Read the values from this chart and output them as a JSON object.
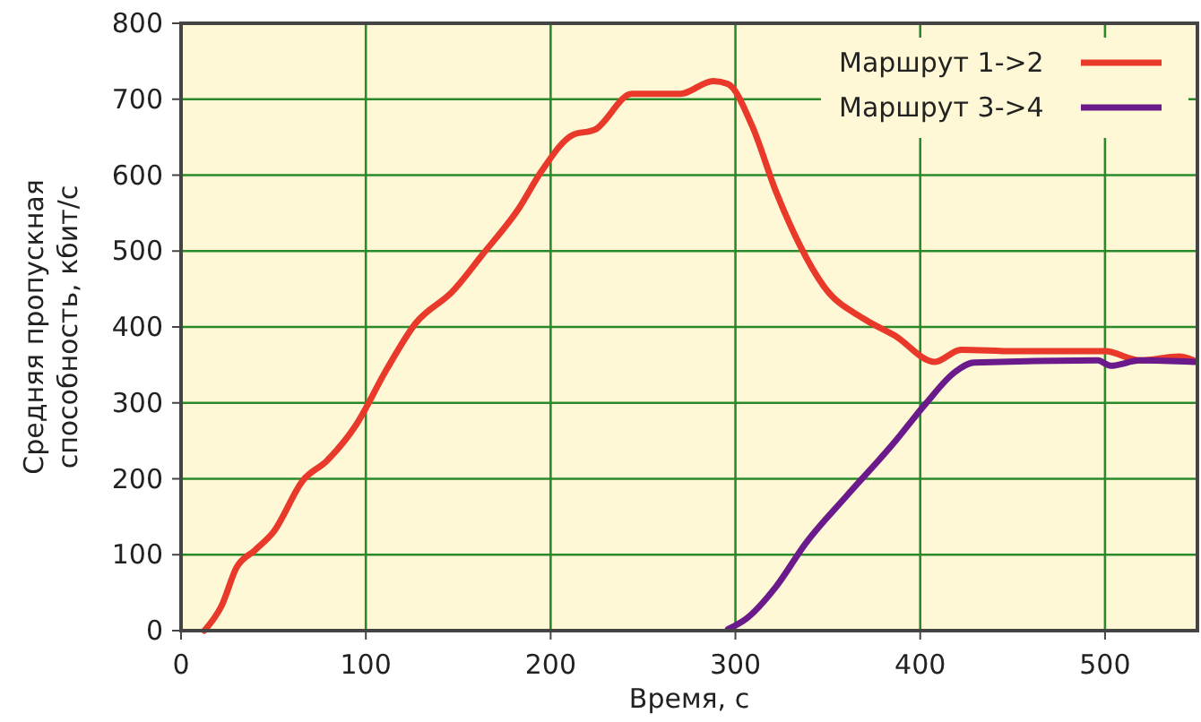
{
  "chart_data": {
    "type": "line",
    "xlabel": "Время, с",
    "ylabel": "Средняя пропускная способность, кбит/с",
    "xlim": [
      0,
      550
    ],
    "xticks": [
      0,
      100,
      200,
      300,
      400,
      500
    ],
    "ylim": [
      0,
      800
    ],
    "yticks": [
      0,
      100,
      200,
      300,
      400,
      500,
      600,
      700,
      800
    ],
    "grid": true,
    "legend": "top right",
    "marker": "none",
    "line_style": "solid",
    "series": [
      {
        "name": "Маршрут 1->2",
        "color": "#e8392a",
        "x": [
          12.6,
          22,
          30,
          40,
          50,
          66,
          79,
          95,
          111,
          127,
          147,
          163,
          183,
          195,
          212,
          224,
          244,
          270,
          288,
          296,
          309,
          322,
          335,
          348,
          370,
          386,
          408,
          422,
          451,
          500,
          519,
          540,
          548
        ],
        "values": [
          0,
          33,
          83,
          106,
          130,
          198,
          224,
          272,
          343,
          405,
          447,
          495,
          557,
          605,
          653,
          660,
          707,
          707,
          724,
          720,
          665,
          578,
          507,
          453,
          410,
          389,
          354,
          370,
          368,
          368,
          356,
          361,
          356
        ]
      },
      {
        "name": "Маршрут 3->4",
        "color": "#6a1a8a",
        "x": [
          296,
          306,
          322,
          338,
          360,
          386,
          403,
          419,
          429,
          496,
          503,
          519,
          548
        ],
        "values": [
          2,
          16,
          58,
          115,
          177,
          248,
          299,
          341,
          353,
          356,
          349,
          356,
          354
        ]
      }
    ]
  }
}
